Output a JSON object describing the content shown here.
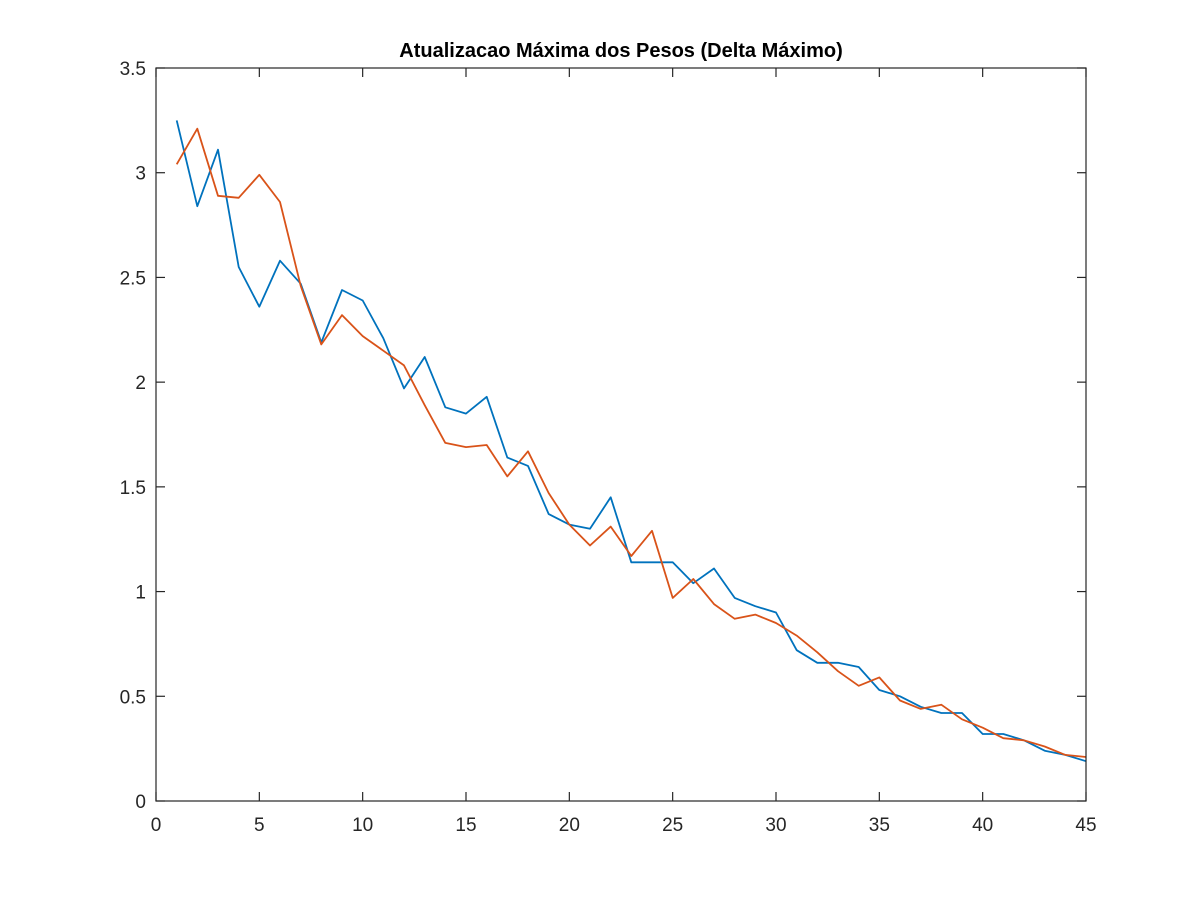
{
  "chart_data": {
    "type": "line",
    "title": "Atualizacao Máxima dos Pesos (Delta Máximo)",
    "xlabel": "",
    "ylabel": "",
    "xlim": [
      0,
      45
    ],
    "ylim": [
      0,
      3.5
    ],
    "xticks": [
      0,
      5,
      10,
      15,
      20,
      25,
      30,
      35,
      40,
      45
    ],
    "yticks": [
      0,
      0.5,
      1,
      1.5,
      2,
      2.5,
      3,
      3.5
    ],
    "grid": false,
    "box": true,
    "x": [
      1,
      2,
      3,
      4,
      5,
      6,
      7,
      8,
      9,
      10,
      11,
      12,
      13,
      14,
      15,
      16,
      17,
      18,
      19,
      20,
      21,
      22,
      23,
      24,
      25,
      26,
      27,
      28,
      29,
      30,
      31,
      32,
      33,
      34,
      35,
      36,
      37,
      38,
      39,
      40,
      41,
      42,
      43,
      44,
      45
    ],
    "series": [
      {
        "color": "#0072BD",
        "values": [
          3.25,
          2.84,
          3.11,
          2.55,
          2.36,
          2.58,
          2.47,
          2.19,
          2.44,
          2.39,
          2.21,
          1.97,
          2.12,
          1.88,
          1.85,
          1.93,
          1.64,
          1.6,
          1.37,
          1.32,
          1.3,
          1.45,
          1.14,
          1.14,
          1.14,
          1.04,
          1.11,
          0.97,
          0.93,
          0.9,
          0.72,
          0.66,
          0.66,
          0.64,
          0.53,
          0.5,
          0.45,
          0.42,
          0.42,
          0.32,
          0.32,
          0.29,
          0.24,
          0.22,
          0.19
        ]
      },
      {
        "color": "#D95319",
        "values": [
          3.04,
          3.21,
          2.89,
          2.88,
          2.99,
          2.86,
          2.46,
          2.18,
          2.32,
          2.22,
          2.15,
          2.08,
          1.89,
          1.71,
          1.69,
          1.7,
          1.55,
          1.67,
          1.47,
          1.32,
          1.22,
          1.31,
          1.17,
          1.29,
          0.97,
          1.06,
          0.94,
          0.87,
          0.89,
          0.85,
          0.79,
          0.71,
          0.62,
          0.55,
          0.59,
          0.48,
          0.44,
          0.46,
          0.39,
          0.35,
          0.3,
          0.29,
          0.26,
          0.22,
          0.21
        ]
      }
    ]
  }
}
